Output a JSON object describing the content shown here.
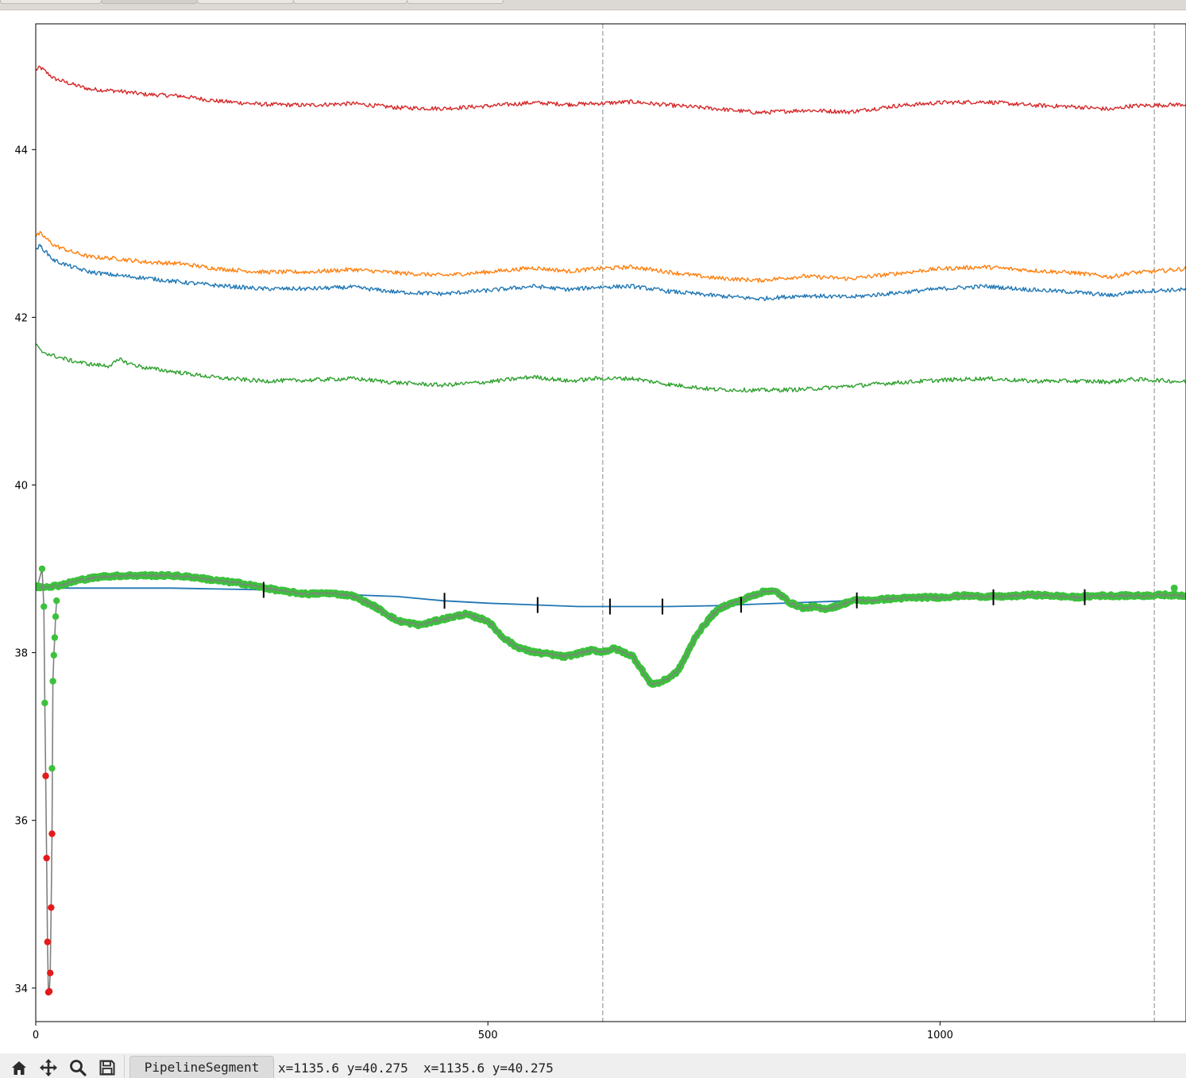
{
  "window": {
    "tabs": [
      {
        "label": "",
        "active": false
      },
      {
        "label": "",
        "active": true
      },
      {
        "label": "",
        "active": false
      },
      {
        "label": "",
        "active": false
      },
      {
        "label": "",
        "active": false
      }
    ]
  },
  "toolbar": {
    "home_icon": "home-icon",
    "pan_icon": "pan-icon",
    "zoom_icon": "zoom-icon",
    "save_icon": "save-icon",
    "segment_label": "PipelineSegment",
    "coords": "x=1135.6 y=40.275  x=1135.6 y=40.275"
  },
  "chart_data": {
    "type": "line",
    "xlim": [
      0,
      1272
    ],
    "ylim": [
      33.6,
      45.5
    ],
    "xticks": [
      0,
      500,
      1000
    ],
    "xtick_labels": [
      "0",
      "500",
      "1000"
    ],
    "yticks": [
      34,
      36,
      38,
      40,
      42,
      44
    ],
    "ytick_labels": [
      "34",
      "36",
      "38",
      "40",
      "42",
      "44"
    ],
    "grid": false,
    "vlines": [
      627,
      1237
    ],
    "series": [
      {
        "color": "#d62728",
        "x": [
          0,
          5,
          20,
          40,
          60,
          90,
          120,
          160,
          200,
          250,
          300,
          350,
          400,
          450,
          500,
          550,
          590,
          620,
          660,
          700,
          750,
          800,
          850,
          900,
          950,
          1000,
          1050,
          1100,
          1150,
          1190,
          1210,
          1240,
          1272
        ],
        "y": [
          44.95,
          44.98,
          44.85,
          44.78,
          44.72,
          44.7,
          44.66,
          44.64,
          44.58,
          44.54,
          44.53,
          44.55,
          44.5,
          44.49,
          44.52,
          44.56,
          44.54,
          44.55,
          44.57,
          44.53,
          44.49,
          44.44,
          44.47,
          44.45,
          44.52,
          44.56,
          44.57,
          44.53,
          44.51,
          44.48,
          44.52,
          44.53,
          44.54
        ]
      },
      {
        "color": "#ff7f0e",
        "x": [
          0,
          5,
          20,
          40,
          60,
          90,
          120,
          160,
          200,
          250,
          300,
          350,
          400,
          450,
          500,
          550,
          590,
          620,
          660,
          700,
          750,
          800,
          850,
          900,
          950,
          1000,
          1050,
          1100,
          1150,
          1190,
          1210,
          1240,
          1272
        ],
        "y": [
          42.97,
          43.0,
          42.86,
          42.78,
          42.72,
          42.7,
          42.66,
          42.64,
          42.58,
          42.54,
          42.54,
          42.57,
          42.53,
          42.5,
          42.54,
          42.59,
          42.55,
          42.58,
          42.6,
          42.54,
          42.47,
          42.44,
          42.49,
          42.46,
          42.52,
          42.58,
          42.6,
          42.56,
          42.53,
          42.48,
          42.53,
          42.55,
          42.58
        ]
      },
      {
        "color": "#1f77b4",
        "x": [
          0,
          5,
          20,
          40,
          60,
          90,
          120,
          160,
          200,
          250,
          300,
          350,
          400,
          450,
          500,
          550,
          590,
          620,
          660,
          700,
          750,
          800,
          850,
          900,
          950,
          1000,
          1050,
          1100,
          1150,
          1190,
          1210,
          1240,
          1272
        ],
        "y": [
          42.82,
          42.85,
          42.68,
          42.6,
          42.54,
          42.5,
          42.47,
          42.42,
          42.38,
          42.34,
          42.34,
          42.36,
          42.3,
          42.28,
          42.32,
          42.37,
          42.33,
          42.36,
          42.37,
          42.31,
          42.26,
          42.22,
          42.26,
          42.24,
          42.29,
          42.34,
          42.37,
          42.33,
          42.3,
          42.26,
          42.3,
          42.32,
          42.33
        ]
      },
      {
        "color": "#2ca02c",
        "x": [
          0,
          5,
          20,
          40,
          60,
          80,
          95,
          100,
          120,
          160,
          200,
          250,
          300,
          350,
          400,
          450,
          500,
          550,
          590,
          620,
          660,
          700,
          750,
          800,
          850,
          900,
          950,
          1000,
          1050,
          1100,
          1150,
          1190,
          1210,
          1240,
          1272
        ],
        "y": [
          41.68,
          41.6,
          41.54,
          41.48,
          41.44,
          41.42,
          41.5,
          41.46,
          41.4,
          41.34,
          41.28,
          41.24,
          41.25,
          41.27,
          41.22,
          41.19,
          41.23,
          41.29,
          41.24,
          41.27,
          41.27,
          41.2,
          41.14,
          41.13,
          41.14,
          41.18,
          41.22,
          41.25,
          41.27,
          41.24,
          41.24,
          41.23,
          41.26,
          41.25,
          41.23
        ]
      },
      {
        "color": "#1f77b4",
        "x": [
          0,
          50,
          100,
          150,
          200,
          250,
          300,
          350,
          400,
          450,
          500,
          550,
          600,
          627,
          650,
          700,
          750,
          800,
          850,
          900,
          950,
          1000,
          1050,
          1100,
          1150,
          1200,
          1272
        ],
        "y": [
          38.77,
          38.77,
          38.77,
          38.77,
          38.76,
          38.75,
          38.72,
          38.69,
          38.67,
          38.62,
          38.59,
          38.57,
          38.55,
          38.55,
          38.55,
          38.55,
          38.56,
          38.58,
          38.6,
          38.62,
          38.64,
          38.66,
          38.66,
          38.66,
          38.66,
          38.67,
          38.68
        ]
      }
    ],
    "spline_knots": [
      252,
      452,
      555,
      635,
      693,
      780,
      908,
      1059,
      1160
    ],
    "measured": {
      "x": [
        0,
        25,
        50,
        75,
        100,
        125,
        150,
        175,
        200,
        225,
        250,
        275,
        300,
        325,
        350,
        375,
        400,
        425,
        450,
        475,
        500,
        515,
        530,
        545,
        555,
        570,
        585,
        600,
        615,
        627,
        640,
        660,
        670,
        680,
        690,
        700,
        710,
        720,
        730,
        740,
        750,
        760,
        770,
        780,
        790,
        800,
        810,
        820,
        835,
        850,
        860,
        870,
        880,
        890,
        900,
        910,
        920,
        940,
        960,
        980,
        1000,
        1025,
        1050,
        1075,
        1100,
        1125,
        1150,
        1175,
        1200,
        1225,
        1250,
        1272
      ],
      "y": [
        38.78,
        38.8,
        38.87,
        38.91,
        38.92,
        38.92,
        38.92,
        38.9,
        38.86,
        38.83,
        38.78,
        38.73,
        38.7,
        38.71,
        38.68,
        38.55,
        38.38,
        38.33,
        38.4,
        38.46,
        38.38,
        38.2,
        38.08,
        38.02,
        38.0,
        37.98,
        37.95,
        37.99,
        38.03,
        38.01,
        38.05,
        37.96,
        37.8,
        37.63,
        37.64,
        37.7,
        37.78,
        37.98,
        38.2,
        38.34,
        38.47,
        38.55,
        38.59,
        38.62,
        38.67,
        38.71,
        38.74,
        38.72,
        38.59,
        38.53,
        38.55,
        38.52,
        38.54,
        38.57,
        38.61,
        38.63,
        38.62,
        38.64,
        38.65,
        38.66,
        38.66,
        38.68,
        38.67,
        38.67,
        38.69,
        38.68,
        38.66,
        38.68,
        38.68,
        38.68,
        38.69,
        38.68
      ]
    },
    "drop": {
      "green_points": [
        [
          2,
          38.8
        ],
        [
          7,
          39.0
        ],
        [
          9,
          38.55
        ],
        [
          10,
          37.4
        ],
        [
          18,
          36.62
        ],
        [
          19,
          37.66
        ],
        [
          20,
          37.97
        ],
        [
          21,
          38.18
        ],
        [
          22,
          38.43
        ],
        [
          23,
          38.62
        ]
      ],
      "red_points": [
        [
          11,
          36.53
        ],
        [
          12,
          35.55
        ],
        [
          13,
          34.55
        ],
        [
          14,
          33.95
        ],
        [
          15,
          33.96
        ],
        [
          16,
          34.18
        ],
        [
          17,
          34.96
        ],
        [
          18,
          35.84
        ]
      ],
      "line_x": [
        2,
        7,
        9,
        10,
        11,
        12,
        13,
        14,
        15,
        16,
        17,
        18,
        19,
        20,
        21,
        22,
        23
      ],
      "line_y": [
        38.8,
        39.0,
        38.55,
        37.4,
        36.53,
        35.55,
        34.55,
        33.95,
        33.96,
        34.18,
        34.96,
        35.84,
        37.66,
        37.97,
        38.18,
        38.43,
        38.62
      ]
    }
  }
}
